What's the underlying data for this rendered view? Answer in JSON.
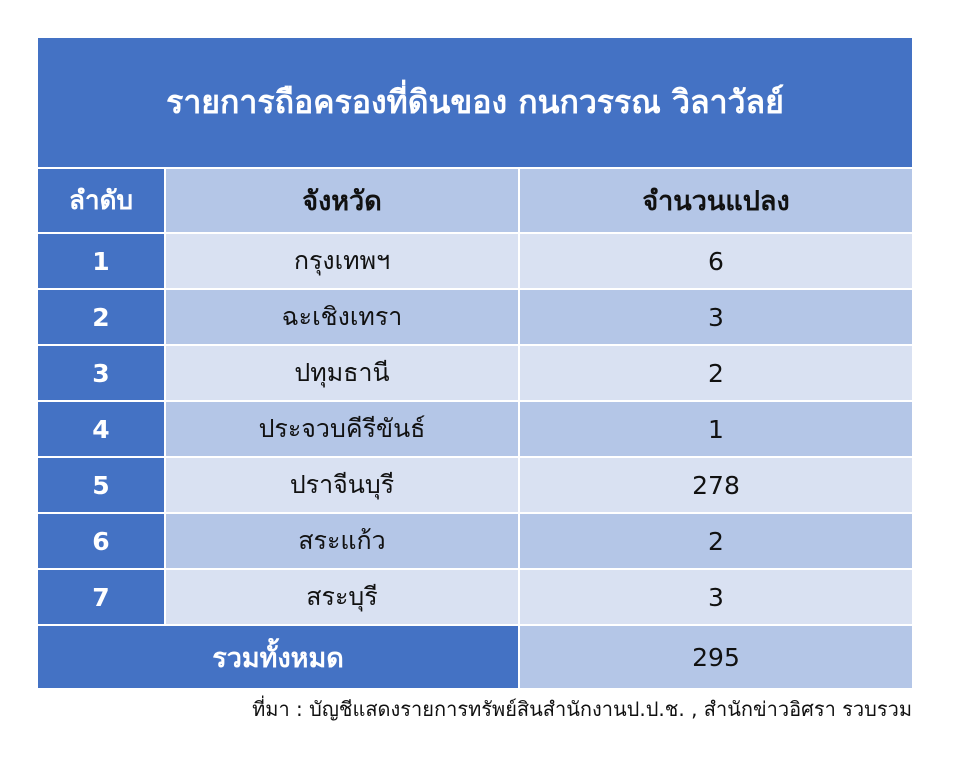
{
  "title": "รายการถือครองที่ดินของ กนกวรรณ วิลาวัลย์",
  "headers": [
    "ลำดับ",
    "จังหวัด",
    "จำนวนแปลง"
  ],
  "rows": [
    {
      "no": "1",
      "province": "กรุงเทพฯ",
      "plots": "6"
    },
    {
      "no": "2",
      "province": "ฉะเชิงเทรา",
      "plots": "3"
    },
    {
      "no": "3",
      "province": "ปทุมธานี",
      "plots": "2"
    },
    {
      "no": "4",
      "province": "ประจวบคีรีขันธ์",
      "plots": "1"
    },
    {
      "no": "5",
      "province": "ปราจีนบุรี",
      "plots": "278"
    },
    {
      "no": "6",
      "province": "สระแก้ว",
      "plots": "2"
    },
    {
      "no": "7",
      "province": "สระบุรี",
      "plots": "3"
    }
  ],
  "total": {
    "label": "รวมทั้งหมด",
    "value": "295"
  },
  "source": "ที่มา : บัญชีแสดงรายการทรัพย์สินสำนักงานป.ป.ช. , สำนักข่าวอิศรา รวบรวม",
  "colors": {
    "dark": "#4472C4",
    "light": "#D9E1F2",
    "mid": "#B4C6E7"
  }
}
